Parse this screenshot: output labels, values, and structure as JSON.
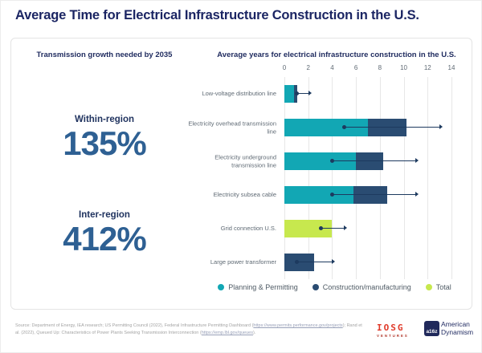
{
  "page": {
    "title": "Average Time for Electrical Infrastructure Construction in the U.S."
  },
  "left_panel": {
    "header": "Transmission growth needed by 2035",
    "stats": [
      {
        "label": "Within-region",
        "value": "135%"
      },
      {
        "label": "Inter-region",
        "value": "412%"
      }
    ]
  },
  "chart_data": {
    "type": "bar",
    "orientation": "horizontal",
    "title": "Average years for electrical infrastructure construction in the U.S.",
    "xlim": [
      0,
      14
    ],
    "x_ticks": [
      0,
      2,
      4,
      6,
      8,
      10,
      12,
      14
    ],
    "grid": true,
    "legend_position": "bottom",
    "series_colors": {
      "Planning & Permitting": "#12A7B4",
      "Construction/manufacturing": "#2A4C72",
      "Total": "#C7E84E"
    },
    "legend": [
      "Planning & Permitting",
      "Construction/manufacturing",
      "Total"
    ],
    "rows": [
      {
        "category": "Low-voltage distribution line",
        "segments": [
          {
            "series": "Planning & Permitting",
            "value": 0.8
          },
          {
            "series": "Construction/manufacturing",
            "value": 0.25
          }
        ],
        "range": [
          1,
          2
        ]
      },
      {
        "category": "Electricity overhead transmission line",
        "segments": [
          {
            "series": "Planning & Permitting",
            "value": 7
          },
          {
            "series": "Construction/manufacturing",
            "value": 3.2
          }
        ],
        "range": [
          5,
          13
        ]
      },
      {
        "category": "Electricity underground transmission line",
        "segments": [
          {
            "series": "Planning & Permitting",
            "value": 6
          },
          {
            "series": "Construction/manufacturing",
            "value": 2.3
          }
        ],
        "range": [
          4,
          11
        ]
      },
      {
        "category": "Electricity subsea cable",
        "segments": [
          {
            "series": "Planning & Permitting",
            "value": 5.8
          },
          {
            "series": "Construction/manufacturing",
            "value": 2.8
          }
        ],
        "range": [
          4,
          11
        ]
      },
      {
        "category": "Grid connection U.S.",
        "segments": [
          {
            "series": "Total",
            "value": 4
          }
        ],
        "range": [
          3,
          5
        ]
      },
      {
        "category": "Large power transformer",
        "segments": [
          {
            "series": "Construction/manufacturing",
            "value": 2.5
          }
        ],
        "range": [
          1,
          4
        ]
      }
    ]
  },
  "footer": {
    "source_parts": [
      {
        "text": "Source: Department of Energy, IEA research; US Permitting Council (2022), Federal Infrastructure Permitting Dashboard (",
        "link": false
      },
      {
        "text": "https://www.permits.performance.gov/projects",
        "link": true
      },
      {
        "text": "); Rand et al. (2022), Queued Up: Characteristics of Power Plants Seeking Transmission Interconnection (",
        "link": false
      },
      {
        "text": "https://emp.lbl.gov/queues",
        "link": true
      },
      {
        "text": ").",
        "link": false
      }
    ],
    "logos": [
      {
        "name": "IOSG Ventures",
        "text": "IOSG",
        "subtext": "VENTURES"
      },
      {
        "name": "a16z American Dynamism",
        "badge": "a16z",
        "line1": "American",
        "line2": "Dynamism"
      }
    ]
  },
  "colors": {
    "title_navy": "#1B2563",
    "stat_blue": "#2E6093",
    "planning_teal": "#12A7B4",
    "construction_navy": "#2A4C72",
    "total_lime": "#C7E84E",
    "range_line": "#1D3A5F",
    "gridline": "#E7E7E7",
    "card_border": "#E4E4E4",
    "iosg_red": "#E03A2A",
    "a16z_navy": "#20295B"
  }
}
